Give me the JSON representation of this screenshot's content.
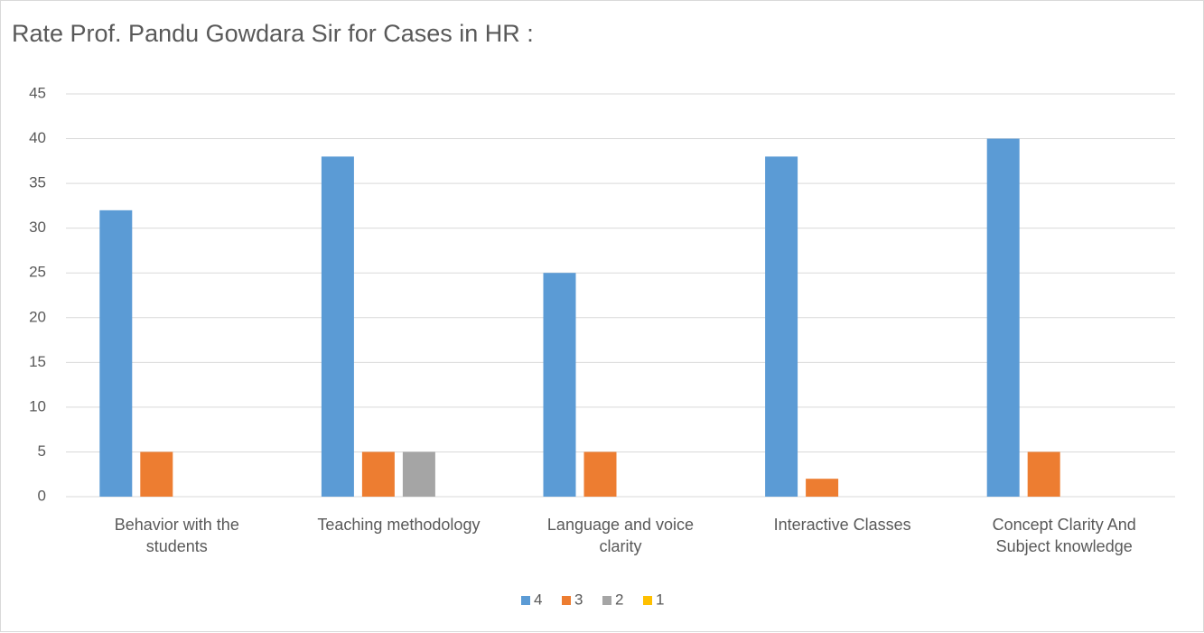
{
  "chart_data": {
    "type": "bar",
    "title": "Rate Prof. Pandu Gowdara Sir for Cases in HR :",
    "categories": [
      "Behavior with the students",
      "Teaching methodology",
      "Language and voice clarity",
      "Interactive Classes",
      "Concept Clarity And Subject knowledge"
    ],
    "series": [
      {
        "name": "4",
        "color": "#5b9bd5",
        "values": [
          32,
          38,
          25,
          38,
          40
        ]
      },
      {
        "name": "3",
        "color": "#ed7d31",
        "values": [
          5,
          5,
          5,
          2,
          5
        ]
      },
      {
        "name": "2",
        "color": "#a5a5a5",
        "values": [
          0,
          5,
          0,
          0,
          0
        ]
      },
      {
        "name": "1",
        "color": "#ffc000",
        "values": [
          0,
          0,
          0,
          0,
          0
        ]
      }
    ],
    "ylim": [
      0,
      45
    ],
    "yticks": [
      0,
      5,
      10,
      15,
      20,
      25,
      30,
      35,
      40,
      45
    ],
    "grid": true,
    "legend": "bottom"
  }
}
